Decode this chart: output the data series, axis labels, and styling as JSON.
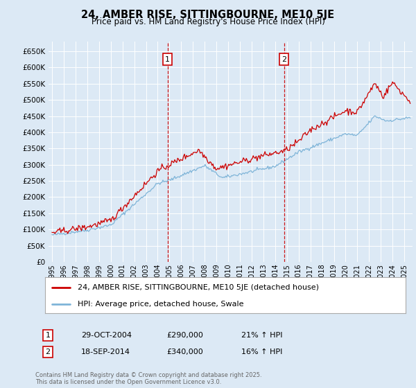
{
  "title": "24, AMBER RISE, SITTINGBOURNE, ME10 5JE",
  "subtitle": "Price paid vs. HM Land Registry's House Price Index (HPI)",
  "ylabel_ticks": [
    "£0",
    "£50K",
    "£100K",
    "£150K",
    "£200K",
    "£250K",
    "£300K",
    "£350K",
    "£400K",
    "£450K",
    "£500K",
    "£550K",
    "£600K",
    "£650K"
  ],
  "ylim": [
    0,
    680000
  ],
  "ytick_values": [
    0,
    50000,
    100000,
    150000,
    200000,
    250000,
    300000,
    350000,
    400000,
    450000,
    500000,
    550000,
    600000,
    650000
  ],
  "background_color": "#dce9f5",
  "grid_color": "#ffffff",
  "red_color": "#cc0000",
  "blue_color": "#7eb4d8",
  "marker1_date": "29-OCT-2004",
  "marker1_price": 290000,
  "marker1_pct": "21%",
  "marker2_date": "18-SEP-2014",
  "marker2_price": 340000,
  "marker2_pct": "16%",
  "legend_label1": "24, AMBER RISE, SITTINGBOURNE, ME10 5JE (detached house)",
  "legend_label2": "HPI: Average price, detached house, Swale",
  "footer": "Contains HM Land Registry data © Crown copyright and database right 2025.\nThis data is licensed under the Open Government Licence v3.0.",
  "x_start_year": 1995,
  "x_end_year": 2025,
  "marker1_x": 2004.83,
  "marker2_x": 2014.75
}
